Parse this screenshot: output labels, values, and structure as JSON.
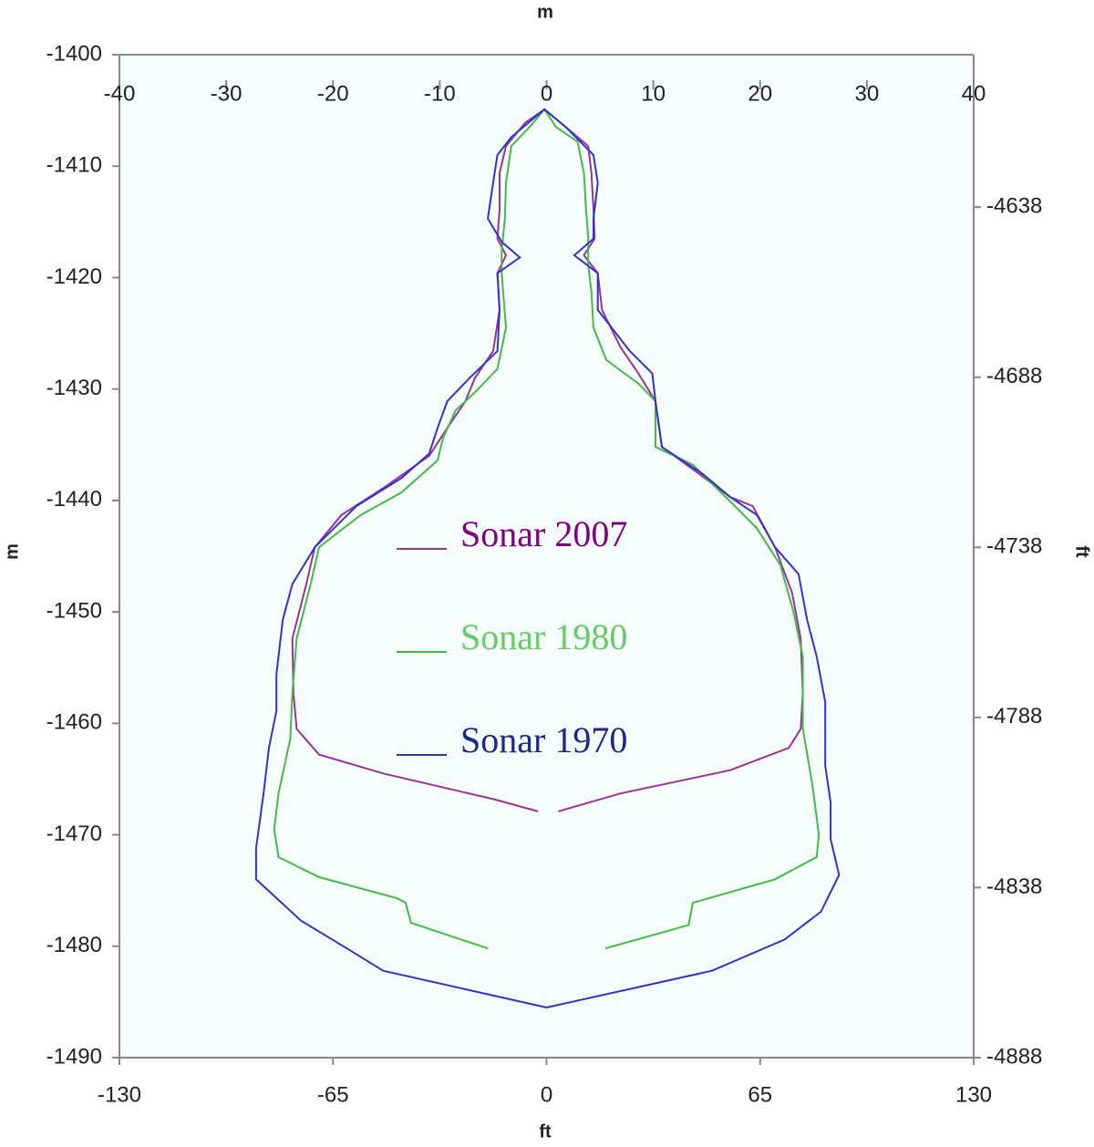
{
  "chart_data": {
    "type": "line",
    "xlabel": "m",
    "ylabel": "m",
    "x2label": "ft",
    "y2label": "ft",
    "xlim": [
      -40,
      40
    ],
    "xticks": [
      -40,
      -30,
      -20,
      -10,
      0,
      10,
      20,
      30,
      40
    ],
    "x2lim": [
      -130,
      130
    ],
    "x2ticks": [
      -130,
      -65,
      0,
      65,
      130
    ],
    "ylim": [
      -1400,
      -1490
    ],
    "yticks": [
      -1400,
      -1410,
      -1420,
      -1430,
      -1440,
      -1450,
      -1460,
      -1470,
      -1480,
      -1490
    ],
    "y2lim": [
      -4593.2,
      -4888
    ],
    "y2ticks": [
      -4638,
      -4688,
      -4738,
      -4788,
      -4838,
      -4888
    ],
    "legend": "center",
    "series": [
      {
        "name": "Sonar 2007",
        "color": "#993399",
        "text_color": "#800080",
        "x": [
          -0.8,
          -5.0,
          -15.3,
          -21.3,
          -23.4,
          -23.7,
          -23.8,
          -22.5,
          -21.7,
          -19.2,
          -15.3,
          -11.0,
          -9.3,
          -7.6,
          -6.7,
          -5.0,
          -4.4,
          -4.6,
          -3.8,
          -4.6,
          -4.4,
          -4.4,
          -3.8,
          -2.0,
          -0.2,
          1.8,
          3.9,
          4.2,
          4.4,
          4.5,
          3.5,
          4.8,
          5.2,
          6.9,
          8.6,
          10.2,
          10.8,
          13.7,
          17.2,
          19.3,
          21.4,
          23.0,
          23.8,
          24.0,
          23.8,
          22.7,
          17.2,
          6.9,
          1.1
        ],
        "values": [
          -1467.9,
          -1466.8,
          -1464.5,
          -1462.8,
          -1460.5,
          -1457.3,
          -1452.4,
          -1447.5,
          -1444.2,
          -1441.3,
          -1438.9,
          -1436.0,
          -1433.5,
          -1431.1,
          -1429.0,
          -1426.6,
          -1422.9,
          -1419.6,
          -1418.0,
          -1416.5,
          -1413.9,
          -1410.6,
          -1408.2,
          -1406.1,
          -1404.9,
          -1406.5,
          -1408.2,
          -1410.6,
          -1413.9,
          -1416.5,
          -1418.0,
          -1419.6,
          -1422.9,
          -1426.2,
          -1428.6,
          -1431.1,
          -1435.2,
          -1437.2,
          -1439.7,
          -1440.5,
          -1444.2,
          -1448.3,
          -1452.4,
          -1457.3,
          -1460.5,
          -1462.2,
          -1464.2,
          -1466.3,
          -1467.9
        ]
      },
      {
        "name": "Sonar 1980",
        "color": "#44bb44",
        "text_color": "#66cc66",
        "x": [
          -5.5,
          -12.7,
          -13.2,
          -14.0,
          -21.3,
          -25.1,
          -25.5,
          -25.1,
          -24.0,
          -23.8,
          -23.4,
          -22.1,
          -21.3,
          -17.4,
          -13.6,
          -10.2,
          -9.7,
          -8.5,
          -6.7,
          -4.6,
          -3.8,
          -4.2,
          -4.2,
          -3.9,
          -3.8,
          -3.3,
          -1.6,
          -0.2,
          0.9,
          2.9,
          3.5,
          3.7,
          3.9,
          3.9,
          4.2,
          4.4,
          5.6,
          8.6,
          10.2,
          10.2,
          13.7,
          17.2,
          19.7,
          21.9,
          23.1,
          24.0,
          24.0,
          24.9,
          25.5,
          25.3,
          21.4,
          13.7,
          13.3,
          5.5
        ],
        "values": [
          -1480.2,
          -1477.9,
          -1476.1,
          -1475.7,
          -1473.8,
          -1472.0,
          -1469.5,
          -1466.3,
          -1461.4,
          -1457.3,
          -1452.4,
          -1447.5,
          -1444.2,
          -1441.3,
          -1439.3,
          -1436.4,
          -1434.4,
          -1431.9,
          -1430.3,
          -1428.2,
          -1424.5,
          -1419.6,
          -1417.6,
          -1414.7,
          -1411.5,
          -1408.2,
          -1406.5,
          -1404.9,
          -1406.5,
          -1407.8,
          -1410.6,
          -1413.9,
          -1416.4,
          -1418.8,
          -1421.3,
          -1424.5,
          -1427.4,
          -1429.5,
          -1431.1,
          -1435.2,
          -1436.8,
          -1440.1,
          -1442.5,
          -1445.8,
          -1449.9,
          -1454.0,
          -1460.5,
          -1465.5,
          -1470.0,
          -1472.0,
          -1474.0,
          -1476.1,
          -1478.1,
          -1480.2
        ]
      },
      {
        "name": "Sonar 1970",
        "color": "#3333cc",
        "text_color": "#1a2a8a",
        "x": [
          0,
          -15.3,
          -18.7,
          -23.0,
          -27.2,
          -27.2,
          -26.5,
          -26.0,
          -25.3,
          -25.3,
          -24.7,
          -23.8,
          -21.7,
          -17.8,
          -13.6,
          -11.0,
          -10.2,
          -9.3,
          -7.2,
          -4.6,
          -4.4,
          -4.6,
          -2.5,
          -4.2,
          -5.5,
          -5.0,
          -4.6,
          -3.3,
          -0.2,
          1.8,
          4.4,
          4.8,
          4.4,
          4.4,
          2.6,
          4.8,
          4.8,
          7.8,
          9.9,
          10.2,
          10.8,
          14.6,
          17.2,
          19.7,
          21.4,
          23.6,
          24.4,
          25.3,
          26.1,
          26.1,
          26.6,
          26.6,
          27.4,
          25.7,
          22.3,
          15.5,
          0
        ],
        "values": [
          -1485.5,
          -1482.2,
          -1480.2,
          -1477.7,
          -1474.0,
          -1471.2,
          -1466.3,
          -1462.2,
          -1458.9,
          -1455.6,
          -1450.7,
          -1447.5,
          -1444.2,
          -1440.5,
          -1438.0,
          -1435.8,
          -1433.5,
          -1431.1,
          -1429.0,
          -1426.6,
          -1422.9,
          -1419.6,
          -1418.2,
          -1416.8,
          -1414.7,
          -1411.5,
          -1409.0,
          -1407.4,
          -1404.9,
          -1406.5,
          -1409.0,
          -1411.5,
          -1414.7,
          -1416.5,
          -1418.0,
          -1419.6,
          -1422.9,
          -1426.6,
          -1428.6,
          -1431.1,
          -1435.2,
          -1437.6,
          -1439.7,
          -1441.3,
          -1444.2,
          -1446.6,
          -1450.7,
          -1454.0,
          -1458.1,
          -1463.8,
          -1467.1,
          -1470.4,
          -1473.6,
          -1476.9,
          -1479.4,
          -1482.2,
          -1485.5
        ]
      }
    ]
  }
}
